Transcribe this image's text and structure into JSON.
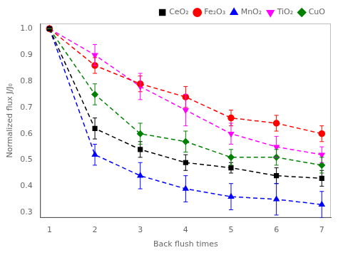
{
  "chart_data": {
    "type": "line",
    "x": [
      1,
      2,
      3,
      4,
      5,
      6,
      7
    ],
    "series": [
      {
        "name": "CeO₂",
        "color": "#000000",
        "marker": "square",
        "line_style": "dashed",
        "values": [
          1.0,
          0.62,
          0.54,
          0.49,
          0.47,
          0.44,
          0.43
        ],
        "errors": [
          0.0,
          0.04,
          0.03,
          0.03,
          0.02,
          0.03,
          0.03
        ]
      },
      {
        "name": "Fe₂O₃",
        "color": "#FF0000",
        "marker": "circle",
        "line_style": "dashed",
        "values": [
          1.0,
          0.86,
          0.79,
          0.74,
          0.66,
          0.64,
          0.6
        ],
        "errors": [
          0.0,
          0.03,
          0.03,
          0.04,
          0.03,
          0.03,
          0.03
        ]
      },
      {
        "name": "MnO₂",
        "color": "#0000FF",
        "marker": "triangle-up",
        "line_style": "dashed",
        "values": [
          1.0,
          0.52,
          0.44,
          0.39,
          0.36,
          0.35,
          0.33
        ],
        "errors": [
          0.0,
          0.04,
          0.05,
          0.05,
          0.05,
          0.06,
          0.05
        ]
      },
      {
        "name": "TiO₂",
        "color": "#FF00FF",
        "marker": "triangle-down",
        "line_style": "dashed",
        "values": [
          1.0,
          0.9,
          0.78,
          0.69,
          0.6,
          0.55,
          0.52
        ],
        "errors": [
          0.0,
          0.04,
          0.05,
          0.06,
          0.04,
          0.04,
          0.03
        ]
      },
      {
        "name": "CuO",
        "color": "#008000",
        "marker": "diamond",
        "line_style": "dashed",
        "values": [
          1.0,
          0.75,
          0.6,
          0.57,
          0.51,
          0.51,
          0.48
        ],
        "errors": [
          0.0,
          0.04,
          0.04,
          0.04,
          0.03,
          0.03,
          0.03
        ]
      }
    ],
    "xlabel": "Back flush times",
    "ylabel": "Normalized flux J/J₀",
    "xlim": [
      0.8,
      7.2
    ],
    "ylim": [
      0.28,
      1.02
    ],
    "xticks": [
      1,
      2,
      3,
      4,
      5,
      6,
      7
    ],
    "yticks": [
      0.3,
      0.4,
      0.5,
      0.6,
      0.7,
      0.8,
      0.9,
      {
        "value": 1.0,
        "label": "1.0"
      }
    ],
    "grid": false,
    "legend": "upper right"
  }
}
